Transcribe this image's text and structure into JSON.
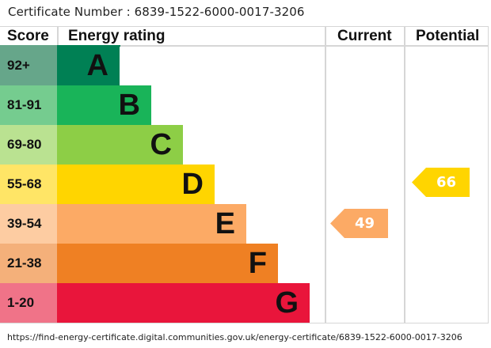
{
  "certificate": {
    "label": "Certificate Number : 6839-1522-6000-0017-3206",
    "number": "6839-1522-6000-0017-3206"
  },
  "header": {
    "score": "Score",
    "rating": "Energy rating",
    "current": "Current",
    "potential": "Potential"
  },
  "bands": [
    {
      "score": "92+",
      "letter": "A",
      "bar_color": "#008054",
      "score_color": "#66a68a",
      "bar_right": 151
    },
    {
      "score": "81-91",
      "letter": "B",
      "bar_color": "#19b459",
      "score_color": "#75cc8f",
      "bar_right": 191
    },
    {
      "score": "69-80",
      "letter": "C",
      "bar_color": "#8dce46",
      "score_color": "#bae291",
      "bar_right": 231
    },
    {
      "score": "55-68",
      "letter": "D",
      "bar_color": "#ffd500",
      "score_color": "#ffe566",
      "bar_right": 271
    },
    {
      "score": "39-54",
      "letter": "E",
      "bar_color": "#fcaa65",
      "score_color": "#fdcca2",
      "bar_right": 311
    },
    {
      "score": "21-38",
      "letter": "F",
      "bar_color": "#ef8023",
      "score_color": "#f4b07a",
      "bar_right": 351
    },
    {
      "score": "1-20",
      "letter": "G",
      "bar_color": "#e9153b",
      "score_color": "#f07388",
      "bar_right": 391
    }
  ],
  "current": {
    "value": "49",
    "band": "E",
    "color": "#fcaa65"
  },
  "potential": {
    "value": "66",
    "band": "D",
    "color": "#ffd500"
  },
  "footer": {
    "url": "https://find-energy-certificate.digital.communities.gov.uk/energy-certificate/6839-1522-6000-0017-3206"
  },
  "chart_data": {
    "type": "bar",
    "title": "Energy rating",
    "categories": [
      "A (92+)",
      "B (81-91)",
      "C (69-80)",
      "D (55-68)",
      "E (39-54)",
      "F (21-38)",
      "G (1-20)"
    ],
    "series": [
      {
        "name": "Current",
        "values": [
          null,
          null,
          null,
          null,
          49,
          null,
          null
        ]
      },
      {
        "name": "Potential",
        "values": [
          null,
          null,
          null,
          66,
          null,
          null,
          null
        ]
      }
    ],
    "current_rating": {
      "score": 49,
      "band": "E"
    },
    "potential_rating": {
      "score": 66,
      "band": "D"
    },
    "xlabel": "",
    "ylabel": "Score",
    "legend": [
      "Current",
      "Potential"
    ]
  }
}
